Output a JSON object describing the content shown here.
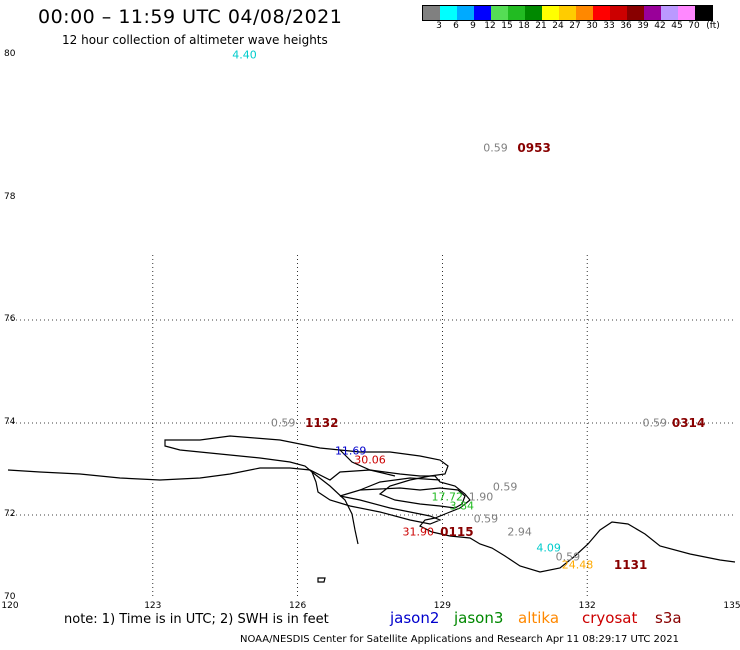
{
  "header": {
    "title": "00:00 – 11:59 UTC 04/08/2021",
    "subtitle": "12 hour collection of altimeter wave heights"
  },
  "color_scale": {
    "colors": [
      "#808080",
      "#00ffff",
      "#00aaff",
      "#0000ff",
      "#55dd55",
      "#22bb22",
      "#008800",
      "#ffff00",
      "#ffcc00",
      "#ff8800",
      "#ff0000",
      "#cc0000",
      "#880000",
      "#990099",
      "#bb99ff",
      "#ff88ff",
      "#000000"
    ],
    "labels": [
      "3",
      "6",
      "9",
      "12",
      "15",
      "18",
      "21",
      "24",
      "27",
      "30",
      "33",
      "36",
      "39",
      "42",
      "45",
      "70",
      "(ft)"
    ]
  },
  "lat_labels": [
    "80",
    "78",
    "76",
    "74",
    "72",
    "70"
  ],
  "lon_labels": [
    "120",
    "123",
    "126",
    "129",
    "132",
    "135"
  ],
  "annotations": [
    {
      "text": "4.40",
      "color": "#00cccc",
      "lon": 124.9,
      "lat": 80.0
    },
    {
      "text": "0.59",
      "color": "#808080",
      "lon": 130.1,
      "lat": 78.7
    },
    {
      "text": "0953",
      "color": "#880000",
      "lon": 130.9,
      "lat": 78.7,
      "bold": true
    },
    {
      "text": "0.59",
      "color": "#808080",
      "lon": 125.7,
      "lat": 74.0
    },
    {
      "text": "1132",
      "color": "#880000",
      "lon": 126.5,
      "lat": 74.0,
      "bold": true
    },
    {
      "text": "0.59",
      "color": "#808080",
      "lon": 133.4,
      "lat": 74.0
    },
    {
      "text": "0314",
      "color": "#880000",
      "lon": 134.1,
      "lat": 74.0,
      "bold": true
    },
    {
      "text": "11.69",
      "color": "#0000cc",
      "lon": 127.1,
      "lat": 73.4
    },
    {
      "text": "30.06",
      "color": "#cc0000",
      "lon": 127.5,
      "lat": 73.2
    },
    {
      "text": "0.59",
      "color": "#808080",
      "lon": 130.3,
      "lat": 72.6
    },
    {
      "text": "1.90",
      "color": "#808080",
      "lon": 129.8,
      "lat": 72.4
    },
    {
      "text": "17.72",
      "color": "#22bb22",
      "lon": 129.1,
      "lat": 72.4
    },
    {
      "text": "3.84",
      "color": "#22bb22",
      "lon": 129.4,
      "lat": 72.2
    },
    {
      "text": "0.59",
      "color": "#808080",
      "lon": 129.9,
      "lat": 71.9
    },
    {
      "text": "2.94",
      "color": "#808080",
      "lon": 130.6,
      "lat": 71.6
    },
    {
      "text": "31.90",
      "color": "#cc0000",
      "lon": 128.5,
      "lat": 71.6
    },
    {
      "text": "0115",
      "color": "#880000",
      "lon": 129.3,
      "lat": 71.6,
      "bold": true
    },
    {
      "text": "4.09",
      "color": "#00cccc",
      "lon": 131.2,
      "lat": 71.2
    },
    {
      "text": "0.59",
      "color": "#808080",
      "lon": 131.6,
      "lat": 71.0
    },
    {
      "text": "24.48",
      "color": "#ffaa00",
      "lon": 131.8,
      "lat": 70.8
    },
    {
      "text": "1131",
      "color": "#880000",
      "lon": 132.9,
      "lat": 70.8,
      "bold": true
    }
  ],
  "footer": {
    "note": "note: 1) Time is in UTC; 2) SWH is in feet",
    "legend": [
      {
        "label": "jason2",
        "color": "#0000cc"
      },
      {
        "label": "jason3",
        "color": "#008800"
      },
      {
        "label": "altika",
        "color": "#ff8800"
      },
      {
        "label": "cryosat",
        "color": "#cc0000"
      },
      {
        "label": "s3a",
        "color": "#880000"
      }
    ],
    "credit": "NOAA/NESDIS Center for Satellite Applications and Research     Apr 11 08:29:17 UTC 2021"
  }
}
